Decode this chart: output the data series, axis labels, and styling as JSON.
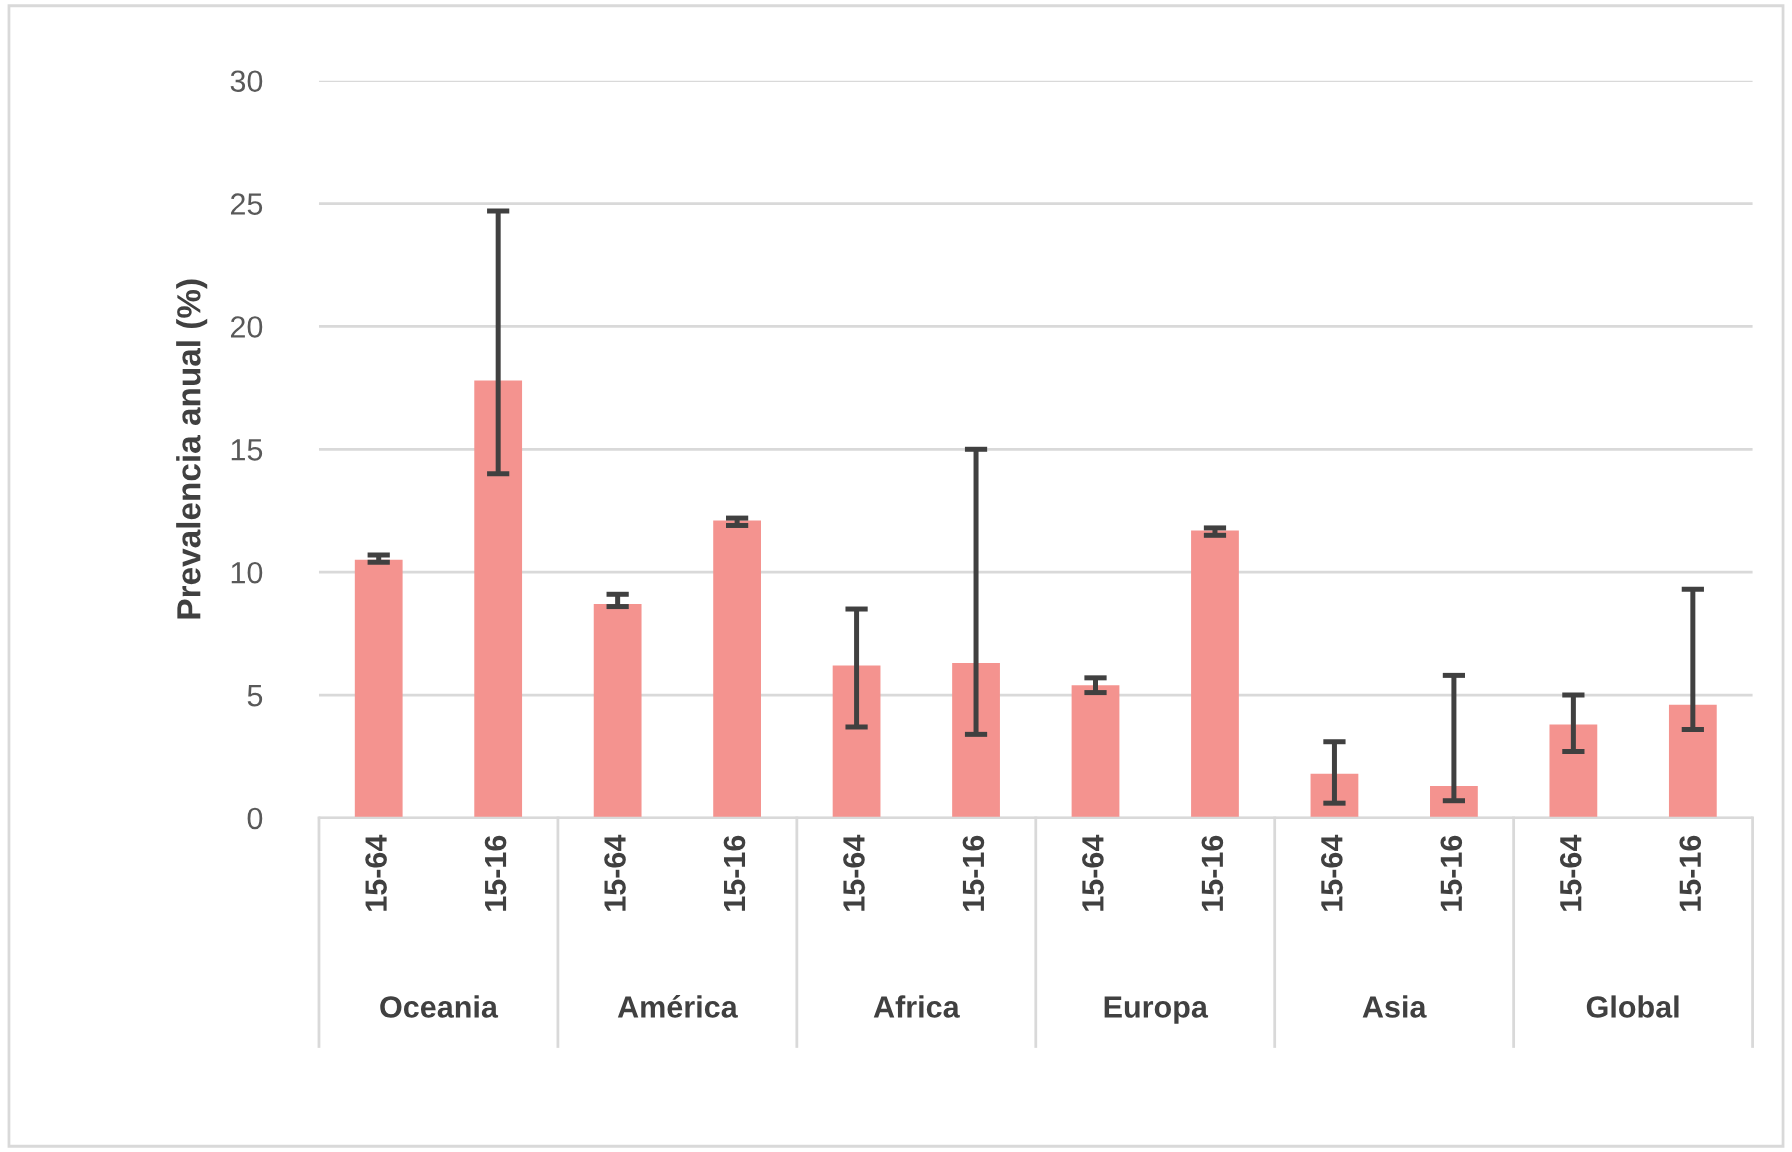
{
  "chart_data": {
    "type": "bar",
    "ylabel": "Prevalencia anual (%)",
    "categories": [
      "15-64",
      "15-16",
      "15-64",
      "15-16",
      "15-64",
      "15-16",
      "15-64",
      "15-16",
      "15-64",
      "15-16",
      "15-64",
      "15-16"
    ],
    "values": [
      10.5,
      17.8,
      8.7,
      12.1,
      6.2,
      6.3,
      5.4,
      11.7,
      1.8,
      1.3,
      3.8,
      4.6
    ],
    "errors": [
      [
        10.4,
        10.7
      ],
      [
        14.0,
        24.7
      ],
      [
        8.6,
        9.1
      ],
      [
        11.9,
        12.2
      ],
      [
        3.7,
        8.5
      ],
      [
        3.4,
        15.0
      ],
      [
        5.1,
        5.7
      ],
      [
        11.5,
        11.8
      ],
      [
        0.6,
        3.1
      ],
      [
        0.7,
        5.8
      ],
      [
        2.7,
        5.0
      ],
      [
        3.6,
        9.3
      ]
    ],
    "color": "#f4938f",
    "annotations": [
      "Oceania",
      "América",
      "Africa",
      "Europa",
      "Asia",
      "Global"
    ],
    "ylim": [
      0,
      30
    ],
    "yticks": [
      0,
      5,
      10,
      15,
      20,
      25,
      30
    ],
    "grid": "y",
    "legend": false
  }
}
